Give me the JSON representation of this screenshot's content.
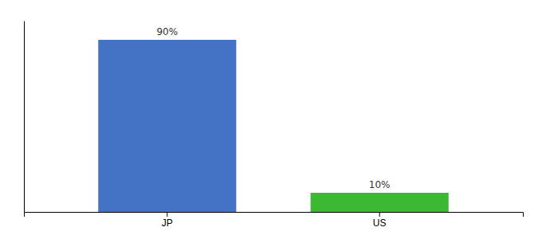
{
  "chart_data": {
    "type": "bar",
    "categories": [
      "JP",
      "US"
    ],
    "values": [
      90,
      10
    ],
    "value_labels": [
      "90%",
      "10%"
    ],
    "colors": [
      "#4472c4",
      "#3cb832"
    ],
    "ylim": [
      0,
      100
    ],
    "grid": false,
    "data_labels": true,
    "tick_labels": "x"
  }
}
